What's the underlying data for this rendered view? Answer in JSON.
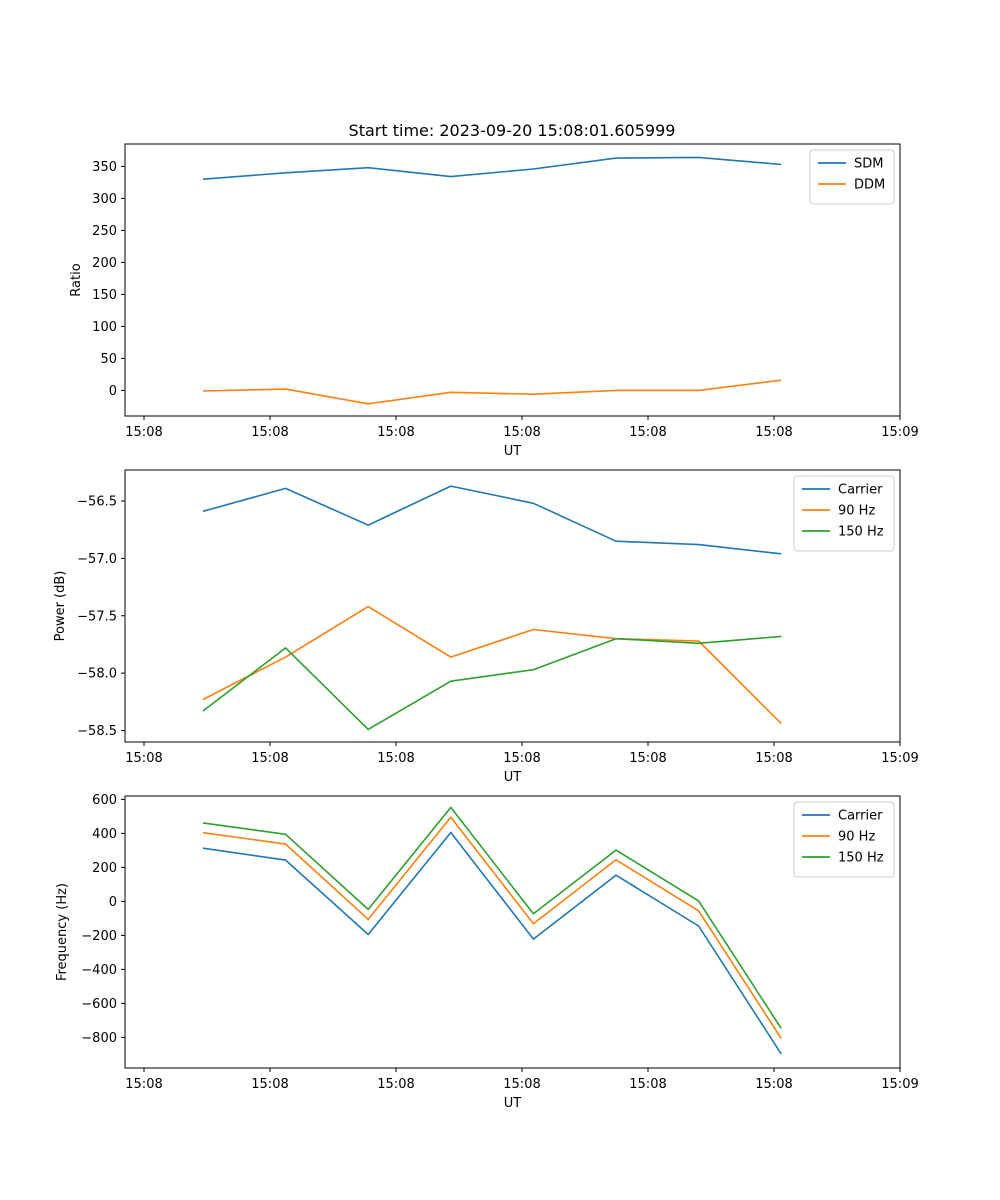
{
  "title": "Start time: 2023-09-20 15:08:01.605999",
  "chart_data": [
    {
      "type": "line",
      "ylabel": "Ratio",
      "xlabel": "UT",
      "x_tick_labels": [
        "15:08",
        "15:08",
        "15:08",
        "15:08",
        "15:08",
        "15:08",
        "15:09"
      ],
      "y_ticks": [
        0,
        50,
        100,
        150,
        200,
        250,
        300,
        350
      ],
      "y_tick_labels": [
        "0",
        "50",
        "100",
        "150",
        "200",
        "250",
        "300",
        "350"
      ],
      "ylim": [
        -40,
        385
      ],
      "legend_position": "upper-right",
      "series": [
        {
          "name": "SDM",
          "color": "#1f77b4",
          "values": [
            330,
            340,
            348,
            334,
            346,
            363,
            364,
            353
          ]
        },
        {
          "name": "DDM",
          "color": "#ff7f0e",
          "values": [
            -1,
            2,
            -21,
            -3,
            -6,
            0,
            0,
            16
          ]
        }
      ]
    },
    {
      "type": "line",
      "ylabel": "Power (dB)",
      "xlabel": "UT",
      "x_tick_labels": [
        "15:08",
        "15:08",
        "15:08",
        "15:08",
        "15:08",
        "15:08",
        "15:09"
      ],
      "y_ticks": [
        -56.5,
        -57.0,
        -57.5,
        -58.0,
        -58.5
      ],
      "y_tick_labels": [
        "−56.5",
        "−57.0",
        "−57.5",
        "−58.0",
        "−58.5"
      ],
      "ylim": [
        -58.6,
        -56.23
      ],
      "legend_position": "upper-right",
      "series": [
        {
          "name": "Carrier",
          "color": "#1f77b4",
          "values": [
            -56.59,
            -56.39,
            -56.71,
            -56.37,
            -56.52,
            -56.85,
            -56.88,
            -56.96
          ]
        },
        {
          "name": "90 Hz",
          "color": "#ff7f0e",
          "values": [
            -58.23,
            -57.86,
            -57.42,
            -57.86,
            -57.62,
            -57.7,
            -57.72,
            -58.44
          ]
        },
        {
          "name": "150 Hz",
          "color": "#2ca02c",
          "values": [
            -58.33,
            -57.78,
            -58.49,
            -58.07,
            -57.97,
            -57.7,
            -57.74,
            -57.68
          ]
        }
      ]
    },
    {
      "type": "line",
      "ylabel": "Frequency (Hz)",
      "xlabel": "UT",
      "x_tick_labels": [
        "15:08",
        "15:08",
        "15:08",
        "15:08",
        "15:08",
        "15:08",
        "15:09"
      ],
      "y_ticks": [
        600,
        400,
        200,
        0,
        -200,
        -400,
        -600,
        -800
      ],
      "y_tick_labels": [
        "600",
        "400",
        "200",
        "0",
        "−200",
        "−400",
        "−600",
        "−800"
      ],
      "ylim": [
        -980,
        620
      ],
      "legend_position": "upper-right",
      "series": [
        {
          "name": "Carrier",
          "color": "#1f77b4",
          "values": [
            313,
            243,
            -195,
            405,
            -222,
            154,
            -145,
            -897
          ]
        },
        {
          "name": "90 Hz",
          "color": "#ff7f0e",
          "values": [
            404,
            337,
            -105,
            495,
            -131,
            245,
            -55,
            -806
          ]
        },
        {
          "name": "150 Hz",
          "color": "#2ca02c",
          "values": [
            462,
            395,
            -47,
            553,
            -73,
            302,
            3,
            -747
          ]
        }
      ]
    }
  ]
}
